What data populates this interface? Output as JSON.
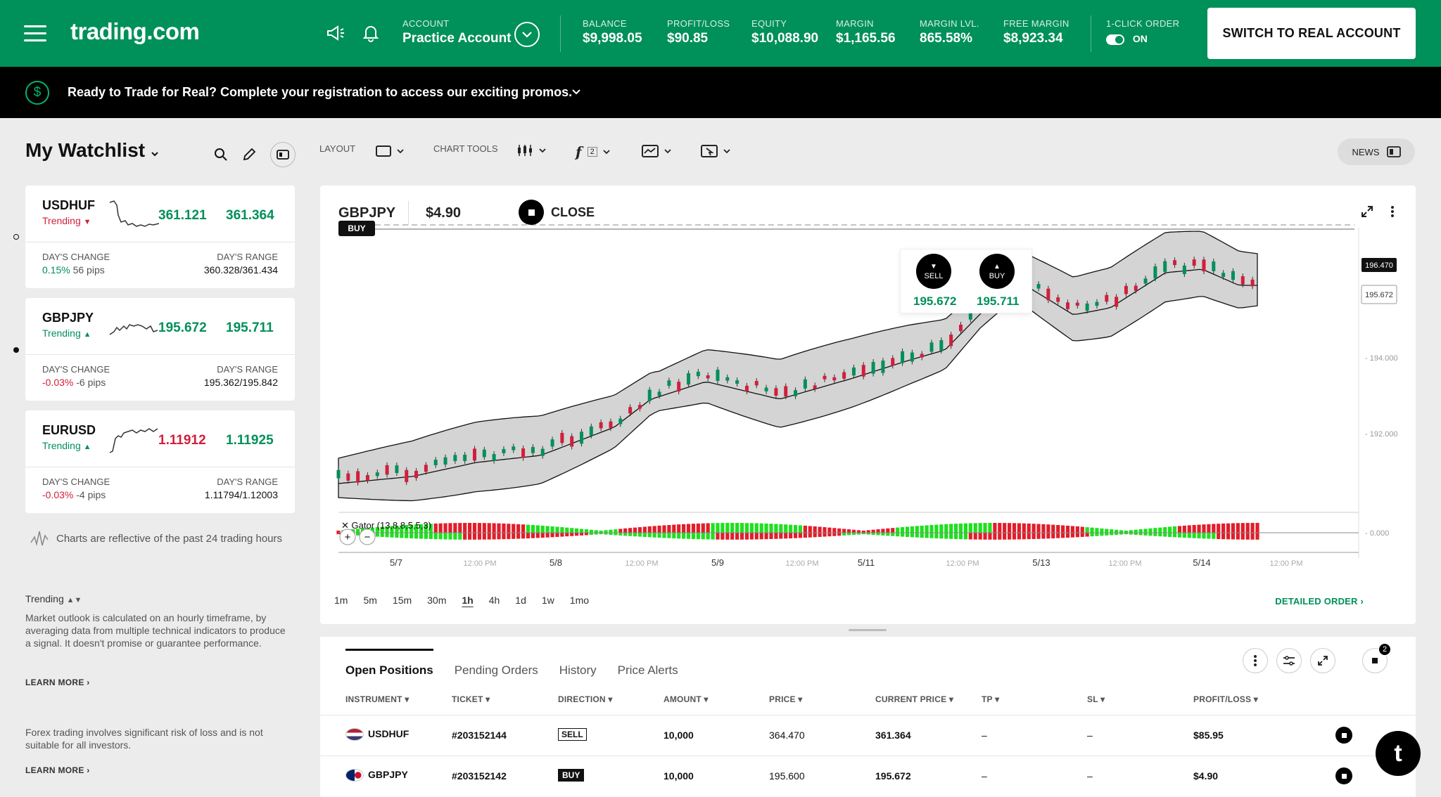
{
  "header": {
    "logo": "trading.com",
    "account_label": "ACCOUNT",
    "account_value": "Practice Account",
    "stats": [
      {
        "label": "BALANCE",
        "value": "$9,998.05"
      },
      {
        "label": "PROFIT/LOSS",
        "value": "$90.85"
      },
      {
        "label": "EQUITY",
        "value": "$10,088.90"
      },
      {
        "label": "MARGIN",
        "value": "$1,165.56"
      },
      {
        "label": "MARGIN LVL.",
        "value": "865.58%"
      },
      {
        "label": "FREE MARGIN",
        "value": "$8,923.34"
      }
    ],
    "one_click_label": "1-CLICK ORDER",
    "one_click_value": "ON",
    "real_account_button": "SWITCH TO REAL ACCOUNT"
  },
  "promo": {
    "text": "Ready to Trade for Real? Complete your registration to access our exciting promos."
  },
  "watchlist": {
    "title": "My Watchlist",
    "items": [
      {
        "symbol": "USDHUF",
        "trend": "Trending",
        "bid": "361.121",
        "ask": "361.364",
        "change_label": "DAY'S CHANGE",
        "change_pct": "0.15%",
        "change_pips": "56 pips",
        "range_label": "DAY'S RANGE",
        "range": "360.328/361.434"
      },
      {
        "symbol": "GBPJPY",
        "trend": "Trending",
        "bid": "195.672",
        "ask": "195.711",
        "change_label": "DAY'S CHANGE",
        "change_pct": "-0.03%",
        "change_pips": "-6 pips",
        "range_label": "DAY'S RANGE",
        "range": "195.362/195.842"
      },
      {
        "symbol": "EURUSD",
        "trend": "Trending",
        "bid": "1.11912",
        "ask": "1.11925",
        "change_label": "DAY'S CHANGE",
        "change_pct": "-0.03%",
        "change_pips": "-4 pips",
        "range_label": "DAY'S RANGE",
        "range": "1.11794/1.12003"
      }
    ],
    "charts_note": "Charts are reflective of the past 24 trading hours",
    "trending_title": "Trending",
    "trending_desc": "Market outlook is calculated on an hourly timeframe, by averaging data from multiple technical indicators to produce a signal. It doesn't promise or guarantee performance.",
    "learn_more": "LEARN MORE",
    "risk_note": "Forex trading involves significant risk of loss and is not suitable for all investors."
  },
  "toolbar": {
    "layout": "LAYOUT",
    "chart_tools": "CHART TOOLS",
    "indicator_count": "2",
    "news": "NEWS"
  },
  "chart": {
    "symbol": "GBPJPY",
    "pl": "$4.90",
    "close_label": "CLOSE",
    "sell_label": "SELL",
    "buy_label": "BUY",
    "sell_price": "195.672",
    "buy_price": "195.711",
    "buy_line_label": "BUY",
    "price_labels": [
      "196.470",
      "195.672"
    ],
    "y_ticks": [
      "194.000",
      "192.000",
      "0.000"
    ],
    "x_ticks": [
      "5/7",
      "12:00 PM",
      "5/8",
      "12:00 PM",
      "5/9",
      "12:00 PM",
      "5/11",
      "12:00 PM",
      "5/13",
      "12:00 PM",
      "5/14",
      "12:00 PM"
    ],
    "indicator_label": "Gator (13,8,8,5,5,3)",
    "timeframes": [
      "1m",
      "5m",
      "15m",
      "30m",
      "1h",
      "4h",
      "1d",
      "1w",
      "1mo"
    ],
    "active_timeframe": "1h",
    "detailed_order": "DETAILED ORDER"
  },
  "positions": {
    "tabs": [
      "Open Positions",
      "Pending Orders",
      "History",
      "Price Alerts"
    ],
    "badge": "2",
    "columns": [
      "INSTRUMENT",
      "TICKET",
      "DIRECTION",
      "AMOUNT",
      "PRICE",
      "CURRENT PRICE",
      "TP",
      "SL",
      "PROFIT/LOSS"
    ],
    "rows": [
      {
        "instrument": "USDHUF",
        "ticket": "#203152144",
        "direction": "SELL",
        "amount": "10,000",
        "price": "364.470",
        "current": "361.364",
        "tp": "–",
        "sl": "–",
        "pl": "$85.95"
      },
      {
        "instrument": "GBPJPY",
        "ticket": "#203152142",
        "direction": "BUY",
        "amount": "10,000",
        "price": "195.600",
        "current": "195.672",
        "tp": "–",
        "sl": "–",
        "pl": "$4.90"
      }
    ]
  },
  "colors": {
    "brand": "#00905a",
    "up": "#00905a",
    "down": "#d11f3b"
  }
}
